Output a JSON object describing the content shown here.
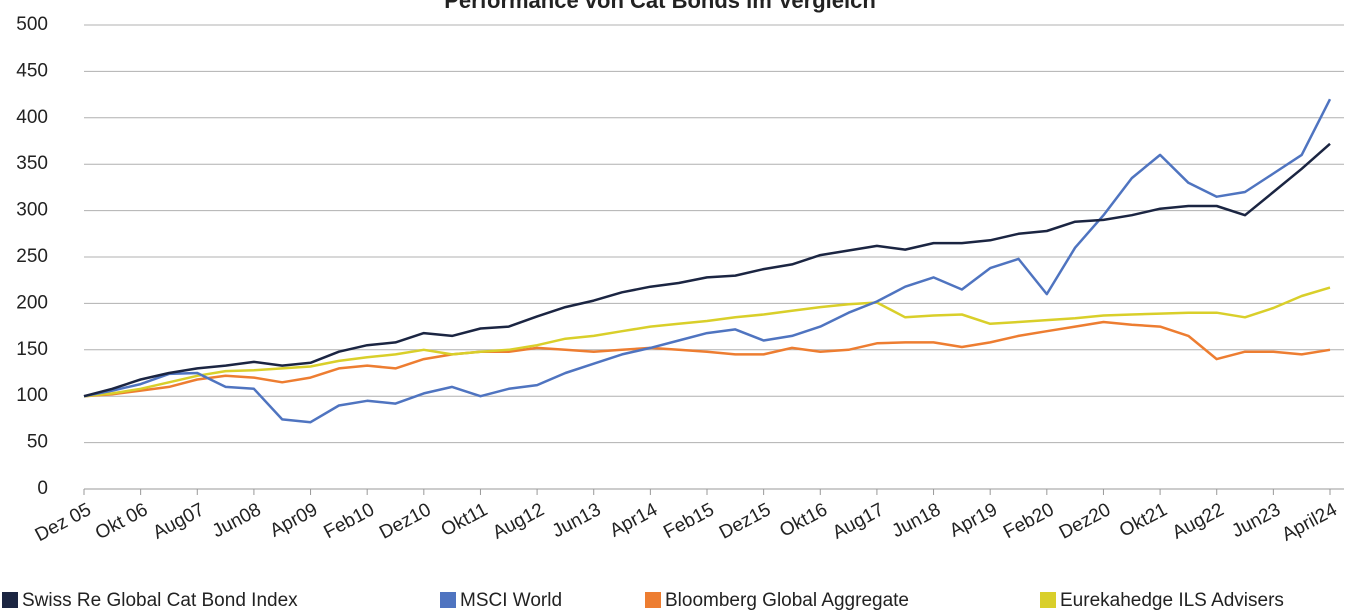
{
  "chart_data": {
    "type": "line",
    "title": "Performance von Cat Bonds im Vergleich",
    "categories": [
      "Dez 05",
      null,
      "Okt 06",
      null,
      "Aug07",
      null,
      "Jun08",
      null,
      "Apr09",
      null,
      "Feb10",
      null,
      "Dez10",
      null,
      "Okt11",
      null,
      "Aug12",
      null,
      "Jun13",
      null,
      "Apr14",
      null,
      "Feb15",
      null,
      "Dez15",
      null,
      "Okt16",
      null,
      "Aug17",
      null,
      "Jun18",
      null,
      "Apr19",
      null,
      "Feb20",
      null,
      "Dez20",
      null,
      "Okt21",
      null,
      "Aug22",
      null,
      "Jun23",
      null,
      "April24"
    ],
    "series": [
      {
        "name": "Swiss Re Global Cat Bond Index",
        "color": "#1b2542",
        "values": [
          100,
          108,
          118,
          125,
          130,
          133,
          137,
          133,
          136,
          148,
          155,
          158,
          168,
          165,
          173,
          175,
          186,
          196,
          203,
          212,
          218,
          222,
          228,
          230,
          237,
          242,
          252,
          257,
          262,
          258,
          265,
          265,
          268,
          275,
          278,
          288,
          290,
          295,
          302,
          305,
          305,
          295,
          320,
          345,
          372
        ]
      },
      {
        "name": "MSCI World",
        "color": "#4f74c0",
        "values": [
          100,
          106,
          113,
          124,
          125,
          110,
          108,
          75,
          72,
          90,
          95,
          92,
          103,
          110,
          100,
          108,
          112,
          125,
          135,
          145,
          152,
          160,
          168,
          172,
          160,
          165,
          175,
          190,
          202,
          218,
          228,
          215,
          238,
          248,
          210,
          260,
          295,
          335,
          360,
          330,
          315,
          320,
          340,
          360,
          420
        ]
      },
      {
        "name": "Bloomberg Global Aggregate",
        "color": "#ed7d31",
        "values": [
          100,
          102,
          106,
          110,
          118,
          122,
          120,
          115,
          120,
          130,
          133,
          130,
          140,
          145,
          148,
          148,
          152,
          150,
          148,
          150,
          152,
          150,
          148,
          145,
          145,
          152,
          148,
          150,
          157,
          158,
          158,
          153,
          158,
          165,
          170,
          175,
          180,
          177,
          175,
          165,
          140,
          148,
          148,
          145,
          150
        ]
      },
      {
        "name": "Eurekahedge ILS Advisers",
        "color": "#d9cf2a",
        "values": [
          100,
          103,
          108,
          115,
          122,
          127,
          128,
          130,
          132,
          138,
          142,
          145,
          150,
          145,
          148,
          150,
          155,
          162,
          165,
          170,
          175,
          178,
          181,
          185,
          188,
          192,
          196,
          199,
          201,
          185,
          187,
          188,
          178,
          180,
          182,
          184,
          187,
          188,
          189,
          190,
          190,
          185,
          195,
          208,
          217
        ]
      }
    ],
    "ylim": [
      0,
      500
    ],
    "yticks": [
      0,
      50,
      100,
      150,
      200,
      250,
      300,
      350,
      400,
      450,
      500
    ],
    "grid": true
  }
}
